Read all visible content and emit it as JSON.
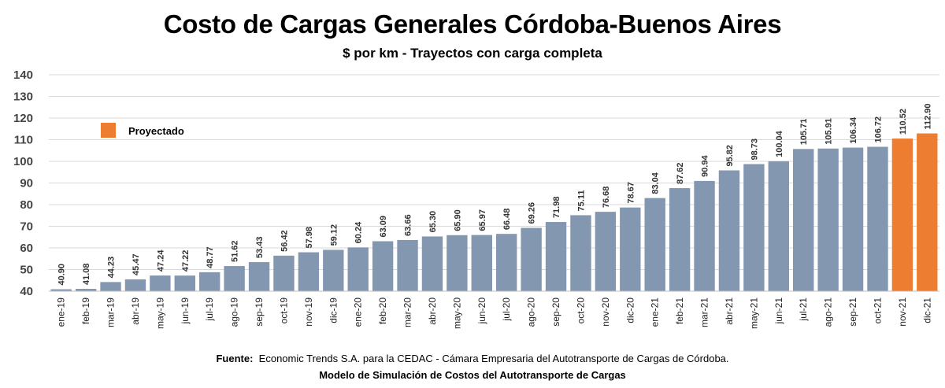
{
  "title": "Costo de Cargas Generales Córdoba-Buenos Aires",
  "subtitle": "$ por km - Trayectos con carga completa",
  "footer": {
    "source_label": "Fuente:",
    "source_text": "Economic Trends S.A. para la CEDAC - Cámara Empresaria del Autotransporte de Cargas de Córdoba.",
    "model_text": "Modelo de Simulación de Costos del Autotransporte de Cargas"
  },
  "colors": {
    "actual": "#8497b0",
    "projected": "#ed7d31",
    "grid": "#d9d9d9"
  },
  "chart_data": {
    "type": "bar",
    "title": "Costo de Cargas Generales Córdoba-Buenos Aires",
    "subtitle": "$ por km - Trayectos con carga completa",
    "xlabel": "",
    "ylabel": "",
    "ylim": [
      40,
      140
    ],
    "yticks": [
      40,
      50,
      60,
      70,
      80,
      90,
      100,
      110,
      120,
      130,
      140
    ],
    "grid": true,
    "legend": {
      "position": "top-left",
      "entries": [
        {
          "name": "Proyectado",
          "color": "#ed7d31"
        }
      ]
    },
    "categories": [
      "ene-19",
      "feb-19",
      "mar-19",
      "abr-19",
      "may-19",
      "jun-19",
      "jul-19",
      "ago-19",
      "sep-19",
      "oct-19",
      "nov-19",
      "dic-19",
      "ene-20",
      "feb-20",
      "mar-20",
      "abr-20",
      "may-20",
      "jun-20",
      "jul-20",
      "ago-20",
      "sep-20",
      "oct-20",
      "nov-20",
      "dic-20",
      "ene-21",
      "feb-21",
      "mar-21",
      "abr-21",
      "may-21",
      "jun-21",
      "jul-21",
      "ago-21",
      "sep-21",
      "oct-21",
      "nov-21",
      "dic-21"
    ],
    "values": [
      40.9,
      41.08,
      44.23,
      45.47,
      47.24,
      47.22,
      48.77,
      51.62,
      53.43,
      56.42,
      57.98,
      59.12,
      60.24,
      63.09,
      63.66,
      65.3,
      65.9,
      65.97,
      66.48,
      69.26,
      71.98,
      75.11,
      76.68,
      78.67,
      83.04,
      87.62,
      90.94,
      95.82,
      98.73,
      100.04,
      105.71,
      105.91,
      106.34,
      106.72,
      110.52,
      112.9
    ],
    "data_labels": [
      "40.90",
      "41.08",
      "44.23",
      "45.47",
      "47.24",
      "47.22",
      "48.77",
      "51.62",
      "53.43",
      "56.42",
      "57.98",
      "59.12",
      "60.24",
      "63.09",
      "63.66",
      "65.30",
      "65.90",
      "65.97",
      "66.48",
      "69.26",
      "71.98",
      "75.11",
      "76.68",
      "78.67",
      "83.04",
      "87.62",
      "90.94",
      "95.82",
      "98.73",
      "100.04",
      "105.71",
      "105.91",
      "106.34",
      "106.72",
      "110.52",
      "112.90"
    ],
    "projected": [
      false,
      false,
      false,
      false,
      false,
      false,
      false,
      false,
      false,
      false,
      false,
      false,
      false,
      false,
      false,
      false,
      false,
      false,
      false,
      false,
      false,
      false,
      false,
      false,
      false,
      false,
      false,
      false,
      false,
      false,
      false,
      false,
      false,
      false,
      true,
      true
    ]
  }
}
